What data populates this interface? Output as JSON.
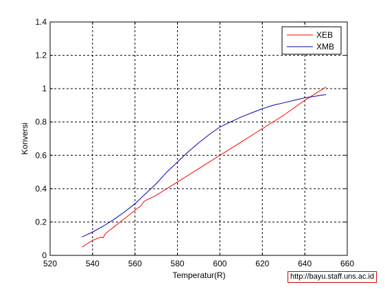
{
  "chart_data": {
    "type": "line",
    "title": "",
    "xlabel": "Temperatur(R)",
    "ylabel": "Konversi",
    "xlim": [
      520,
      660
    ],
    "ylim": [
      0,
      1.4
    ],
    "xticks": [
      520,
      540,
      560,
      580,
      600,
      620,
      640,
      660
    ],
    "yticks": [
      0,
      0.2,
      0.4,
      0.6,
      0.8,
      1,
      1.2,
      1.4
    ],
    "xtick_labels": [
      "520",
      "540",
      "560",
      "580",
      "600",
      "620",
      "640",
      "660"
    ],
    "ytick_labels": [
      "0",
      "0.2",
      "0.4",
      "0.6",
      "0.8",
      "1",
      "1.2",
      "1.4"
    ],
    "grid": true,
    "legend_position": "top-right",
    "series": [
      {
        "name": "XEB",
        "color": "#ff0000",
        "x": [
          535,
          540,
          542,
          544,
          545,
          546,
          550,
          555,
          560,
          563,
          564,
          565,
          570,
          580,
          590,
          600,
          610,
          620,
          630,
          640,
          645,
          650
        ],
        "y": [
          0.05,
          0.09,
          0.1,
          0.11,
          0.105,
          0.13,
          0.17,
          0.22,
          0.27,
          0.3,
          0.32,
          0.33,
          0.36,
          0.44,
          0.52,
          0.6,
          0.68,
          0.76,
          0.84,
          0.93,
          0.97,
          1.01
        ]
      },
      {
        "name": "XMB",
        "color": "#0000aa",
        "x": [
          535,
          540,
          545,
          550,
          555,
          560,
          565,
          570,
          575,
          580,
          585,
          590,
          595,
          600,
          605,
          610,
          615,
          620,
          625,
          630,
          635,
          640,
          645,
          650
        ],
        "y": [
          0.11,
          0.14,
          0.175,
          0.215,
          0.26,
          0.31,
          0.37,
          0.43,
          0.5,
          0.56,
          0.62,
          0.675,
          0.725,
          0.77,
          0.8,
          0.83,
          0.855,
          0.88,
          0.9,
          0.915,
          0.93,
          0.945,
          0.955,
          0.965
        ]
      }
    ]
  },
  "watermark": "http://bayu.staff.uns.ac.id"
}
